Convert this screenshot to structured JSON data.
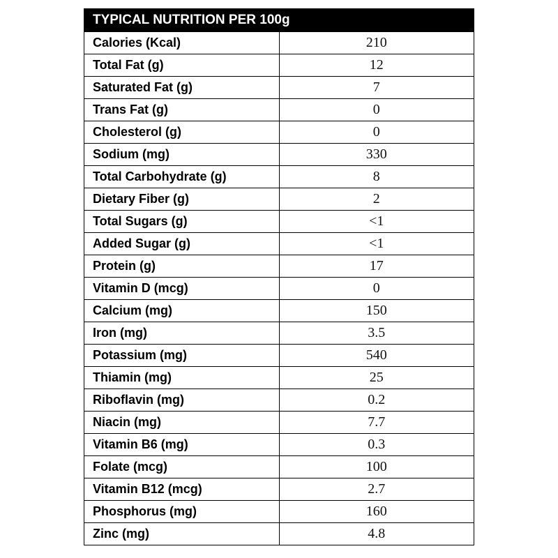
{
  "table": {
    "title": "TYPICAL NUTRITION PER 100g",
    "rows": [
      [
        "Calories (Kcal)",
        "210"
      ],
      [
        "Total Fat (g)",
        "12"
      ],
      [
        "Saturated Fat (g)",
        "7"
      ],
      [
        "Trans Fat (g)",
        "0"
      ],
      [
        "Cholesterol (g)",
        "0"
      ],
      [
        "Sodium (mg)",
        "330"
      ],
      [
        "Total Carbohydrate (g)",
        "8"
      ],
      [
        "Dietary Fiber (g)",
        "2"
      ],
      [
        "Total Sugars (g)",
        "<1"
      ],
      [
        "Added Sugar (g)",
        "<1"
      ],
      [
        "Protein (g)",
        "17"
      ],
      [
        "Vitamin D (mcg)",
        "0"
      ],
      [
        "Calcium (mg)",
        "150"
      ],
      [
        "Iron (mg)",
        "3.5"
      ],
      [
        "Potassium (mg)",
        "540"
      ],
      [
        "Thiamin (mg)",
        "25"
      ],
      [
        "Riboflavin (mg)",
        "0.2"
      ],
      [
        "Niacin (mg)",
        "7.7"
      ],
      [
        "Vitamin B6 (mg)",
        "0.3"
      ],
      [
        "Folate (mcg)",
        "100"
      ],
      [
        "Vitamin B12 (mcg)",
        "2.7"
      ],
      [
        "Phosphorus (mg)",
        "160"
      ],
      [
        "Zinc (mg)",
        "4.8"
      ]
    ]
  }
}
